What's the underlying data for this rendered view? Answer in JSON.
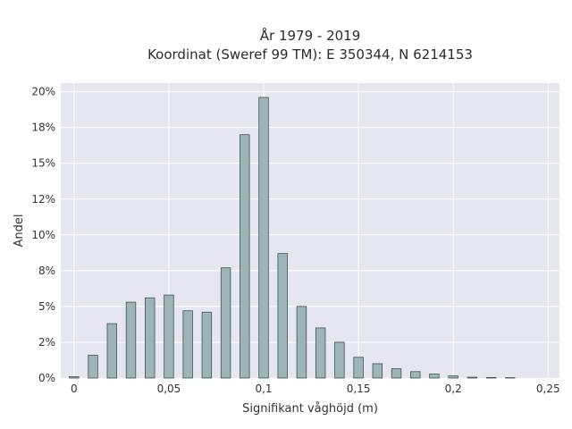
{
  "chart_data": {
    "type": "bar",
    "title_line1": "År 1979 - 2019",
    "title_line2": "Koordinat (Sweref 99 TM): E 350344, N 6214153",
    "xlabel": "Signifikant våghöjd (m)",
    "ylabel": "Andel",
    "x": [
      0,
      0.01,
      0.02,
      0.03,
      0.04,
      0.05,
      0.06,
      0.07,
      0.08,
      0.09,
      0.1,
      0.11,
      0.12,
      0.13,
      0.14,
      0.15,
      0.16,
      0.17,
      0.18,
      0.19,
      0.2,
      0.21,
      0.22,
      0.23
    ],
    "values": [
      0.1,
      1.6,
      3.8,
      5.3,
      5.6,
      5.8,
      4.7,
      4.6,
      7.7,
      17.0,
      19.6,
      8.7,
      5.0,
      3.5,
      2.5,
      1.45,
      1.0,
      0.65,
      0.45,
      0.28,
      0.15,
      0.06,
      0.04,
      0.03
    ],
    "xlim": [
      -0.007,
      0.256
    ],
    "ylim": [
      0,
      20.6
    ],
    "xticks": [
      0,
      0.05,
      0.1,
      0.15,
      0.2,
      0.25
    ],
    "xtick_labels": [
      "0",
      "0,05",
      "0,1",
      "0,15",
      "0,2",
      "0,25"
    ],
    "yticks": [
      0,
      2.5,
      5,
      7.5,
      10,
      12.5,
      15,
      17.5,
      20
    ],
    "ytick_labels": [
      "0%",
      "2%",
      "5%",
      "8%",
      "10%",
      "12%",
      "15%",
      "18%",
      "20%"
    ],
    "grid": true,
    "colors": {
      "plot_bg": "#e5e6ef",
      "grid": "#ffffff",
      "bar_fill": "#9eb5b7",
      "bar_stroke": "#3f5450"
    }
  }
}
